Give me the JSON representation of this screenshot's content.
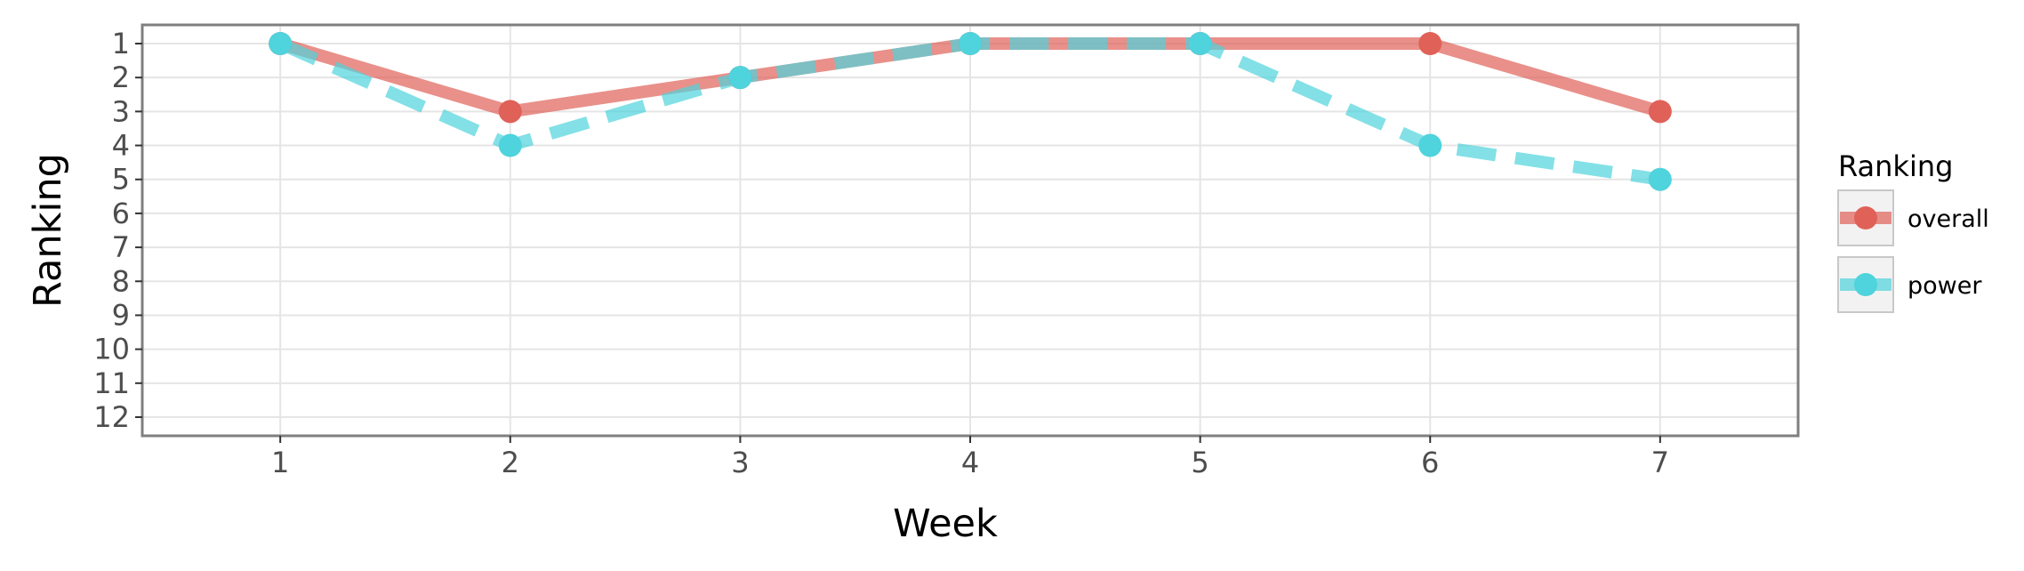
{
  "chart_data": {
    "type": "line",
    "xlabel": "Week",
    "ylabel": "Ranking",
    "x": [
      1,
      2,
      3,
      4,
      5,
      6,
      7
    ],
    "xlim": [
      0.4,
      7.6
    ],
    "ylim": [
      12.55,
      0.45
    ],
    "y_reversed": true,
    "yticks": [
      1,
      2,
      3,
      4,
      5,
      6,
      7,
      8,
      9,
      10,
      11,
      12
    ],
    "ytick_labels": [
      "1",
      "2",
      "3",
      "4",
      "5",
      "6",
      "7",
      "8",
      "9",
      "10",
      "11",
      "12"
    ],
    "xticks": [
      1,
      2,
      3,
      4,
      5,
      6,
      7
    ],
    "xtick_labels": [
      "1",
      "2",
      "3",
      "4",
      "5",
      "6",
      "7"
    ],
    "grid": true,
    "legend": {
      "title": "Ranking",
      "position": "right",
      "entries": [
        "overall",
        "power"
      ]
    },
    "series": [
      {
        "name": "overall",
        "values": [
          1,
          3,
          2,
          1,
          1,
          1,
          3
        ],
        "color": "#e06158",
        "linestyle": "solid"
      },
      {
        "name": "power",
        "values": [
          1,
          4,
          2,
          1,
          1,
          4,
          5
        ],
        "color": "#4fd3dc",
        "linestyle": "dashed"
      }
    ]
  }
}
